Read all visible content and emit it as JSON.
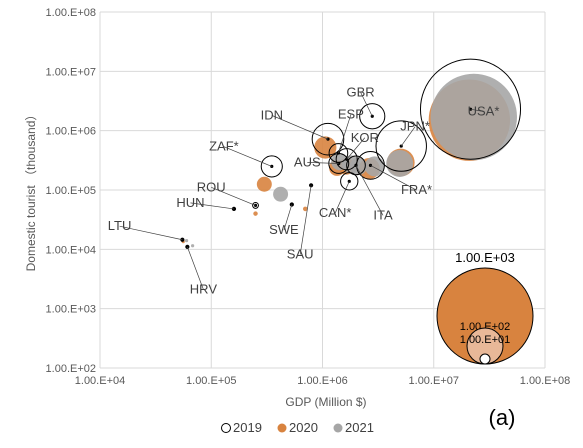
{
  "chart_data": {
    "type": "scatter",
    "subtype": "bubble",
    "xlabel": "GDP (Million $)",
    "ylabel": "Domestic tourist （thousand）",
    "x_scale": "log",
    "y_scale": "log",
    "xlim": [
      10000,
      100000000
    ],
    "ylim": [
      100,
      100000000
    ],
    "x_ticks": [
      "1.00.E+04",
      "1.00.E+05",
      "1.00.E+06",
      "1.00.E+07",
      "1.00.E+08"
    ],
    "y_ticks": [
      "1.00.E+02",
      "1.00.E+03",
      "1.00.E+04",
      "1.00.E+05",
      "1.00.E+06",
      "1.00.E+07",
      "1.00.E+08"
    ],
    "grid": "vertical-and-horizontal",
    "legend_position": "bottom",
    "panel_label": "(a)",
    "series": [
      {
        "name": "2019",
        "color": "#ffffff",
        "stroke": "#000000",
        "points": [
          {
            "country": "USA*",
            "gdp": 21400000,
            "tourists": 2300000,
            "size_value": 2300000
          },
          {
            "country": "JPN*",
            "gdp": 5100000,
            "tourists": 550000,
            "size_value": 550000
          },
          {
            "country": "GBR",
            "gdp": 2800000,
            "tourists": 1750000,
            "size_value": 120000
          },
          {
            "country": "FRA*",
            "gdp": 2700000,
            "tourists": 260000,
            "size_value": 150000
          },
          {
            "country": "IDN",
            "gdp": 1120000,
            "tourists": 720000,
            "size_value": 200000
          },
          {
            "country": "ESP",
            "gdp": 1390000,
            "tourists": 420000,
            "size_value": 60000
          },
          {
            "country": "KOR",
            "gdp": 1650000,
            "tourists": 330000,
            "size_value": 80000
          },
          {
            "country": "AUS",
            "gdp": 1400000,
            "tourists": 280000,
            "size_value": 70000
          },
          {
            "country": "CAN*",
            "gdp": 1740000,
            "tourists": 140000,
            "size_value": 50000
          },
          {
            "country": "ITA",
            "gdp": 2000000,
            "tourists": 260000,
            "size_value": 60000
          },
          {
            "country": "ZAF*",
            "gdp": 350000,
            "tourists": 250000,
            "size_value": 80000
          },
          {
            "country": "ROU",
            "gdp": 250000,
            "tourists": 55000,
            "size_value": 2000
          },
          {
            "country": "HUN",
            "gdp": 160000,
            "tourists": 48000,
            "size_value": 20
          },
          {
            "country": "SWE",
            "gdp": 530000,
            "tourists": 57000,
            "size_value": 15
          },
          {
            "country": "SAU",
            "gdp": 790000,
            "tourists": 120000,
            "size_value": 10
          },
          {
            "country": "LTU",
            "gdp": 55000,
            "tourists": 14500,
            "size_value": 10
          },
          {
            "country": "HRV",
            "gdp": 61000,
            "tourists": 11000,
            "size_value": 10
          }
        ]
      },
      {
        "name": "2020",
        "color": "#d8833f",
        "points": [
          {
            "country": "USA*",
            "gdp": 20900000,
            "tourists": 1500000,
            "size_value": 1500000
          },
          {
            "country": "JPN*",
            "gdp": 5050000,
            "tourists": 290000,
            "size_value": 150000
          },
          {
            "country": "FRA*",
            "gdp": 2630000,
            "tourists": 230000,
            "size_value": 80000
          },
          {
            "country": "IDN",
            "gdp": 1060000,
            "tourists": 520000,
            "size_value": 90000
          },
          {
            "country": "KOR",
            "gdp": 1640000,
            "tourists": 250000,
            "size_value": 45000
          },
          {
            "country": "AUS",
            "gdp": 1350000,
            "tourists": 235000,
            "size_value": 40000
          },
          {
            "country": "ZAF*",
            "gdp": 300000,
            "tourists": 125000,
            "size_value": 35000
          },
          {
            "country": "ROU",
            "gdp": 250000,
            "tourists": 40000,
            "size_value": 500
          },
          {
            "country": "SAU",
            "gdp": 700000,
            "tourists": 48000,
            "size_value": 600
          },
          {
            "country": "LTU",
            "gdp": 56000,
            "tourists": 13500,
            "size_value": 10
          }
        ]
      },
      {
        "name": "2021",
        "color": "#a6a6a6",
        "points": [
          {
            "country": "USA*",
            "gdp": 22900000,
            "tourists": 1700000,
            "size_value": 1700000
          },
          {
            "country": "JPN*",
            "gdp": 4940000,
            "tourists": 280000,
            "size_value": 140000
          },
          {
            "country": "FRA*",
            "gdp": 2940000,
            "tourists": 250000,
            "size_value": 70000
          },
          {
            "country": "ESP",
            "gdp": 1430000,
            "tourists": 300000,
            "size_value": 50000
          },
          {
            "country": "KOR",
            "gdp": 1800000,
            "tourists": 270000,
            "size_value": 55000
          },
          {
            "country": "ITA",
            "gdp": 2100000,
            "tourists": 250000,
            "size_value": 50000
          },
          {
            "country": "ZAF*",
            "gdp": 420000,
            "tourists": 85000,
            "size_value": 35000
          },
          {
            "country": "HRV",
            "gdp": 68000,
            "tourists": 11500,
            "size_value": 10
          },
          {
            "country": "LTU",
            "gdp": 60000,
            "tourists": 14000,
            "size_value": 10
          }
        ]
      }
    ],
    "labels": [
      {
        "text": "USA*",
        "label_gdp": 28000000,
        "label_tourists": 1800000
      },
      {
        "text": "GBR",
        "label_gdp": 2200000,
        "label_tourists": 3800000
      },
      {
        "text": "JPN*",
        "label_gdp": 6800000,
        "label_tourists": 1000000
      },
      {
        "text": "ESP",
        "label_gdp": 1800000,
        "label_tourists": 1600000
      },
      {
        "text": "IDN",
        "label_gdp": 350000,
        "label_tourists": 1550000
      },
      {
        "text": "KOR",
        "label_gdp": 2400000,
        "label_tourists": 650000
      },
      {
        "text": "ZAF*",
        "label_gdp": 130000,
        "label_tourists": 460000
      },
      {
        "text": "AUS",
        "label_gdp": 730000,
        "label_tourists": 250000
      },
      {
        "text": "FRA*",
        "label_gdp": 7000000,
        "label_tourists": 85000
      },
      {
        "text": "ROU",
        "label_gdp": 100000,
        "label_tourists": 95000
      },
      {
        "text": "CAN*",
        "label_gdp": 1300000,
        "label_tourists": 35000
      },
      {
        "text": "ITA",
        "label_gdp": 3500000,
        "label_tourists": 32000
      },
      {
        "text": "HUN",
        "label_gdp": 65000,
        "label_tourists": 52000
      },
      {
        "text": "SWE",
        "label_gdp": 450000,
        "label_tourists": 18000
      },
      {
        "text": "SAU",
        "label_gdp": 630000,
        "label_tourists": 7000
      },
      {
        "text": "LTU",
        "label_gdp": 15000,
        "label_tourists": 21000
      },
      {
        "text": "HRV",
        "label_gdp": 85000,
        "label_tourists": 1800
      }
    ],
    "size_legend": {
      "title": "1.00.E+03",
      "items": [
        {
          "label": "1.00.E+02",
          "value": 1000
        },
        {
          "label": "1.00.E+01",
          "value": 100
        },
        {
          "label": "",
          "value": 10
        }
      ]
    }
  }
}
